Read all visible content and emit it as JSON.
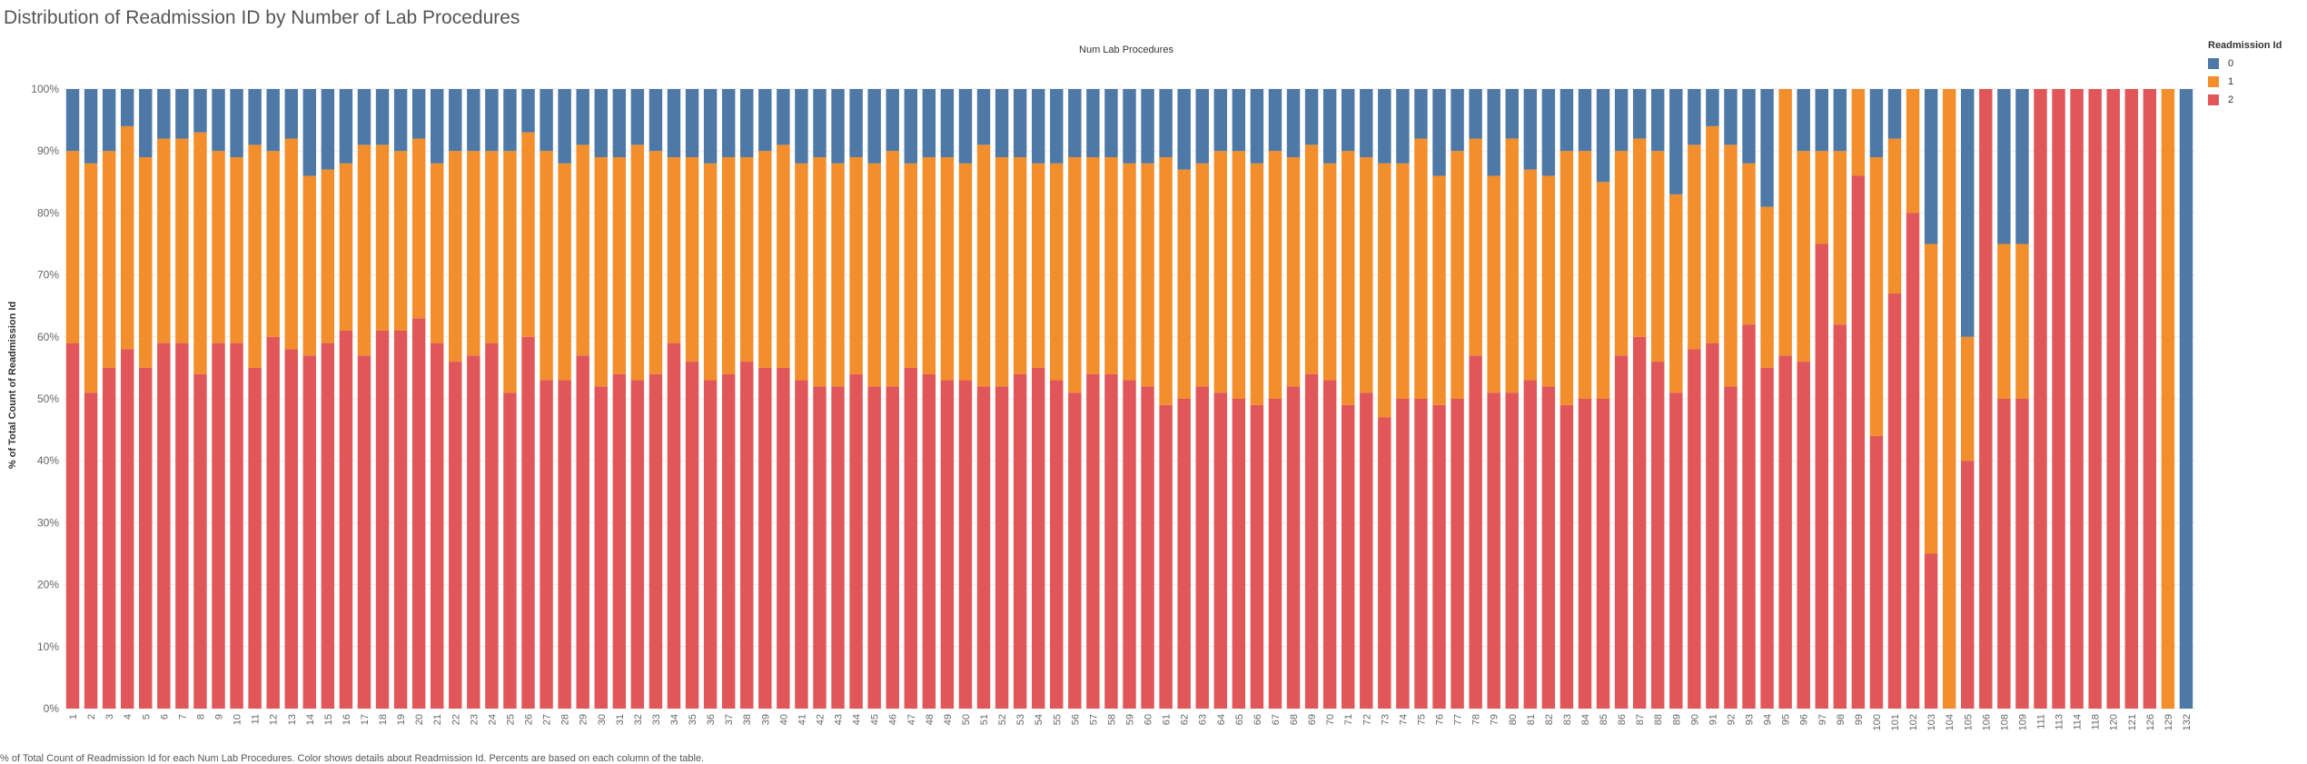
{
  "title": "Distribution of Readmission ID by Number of Lab Procedures",
  "footer": "% of Total Count of Readmission Id for each Num Lab Procedures.  Color shows details about Readmission Id. Percents are based on each column of the table.",
  "legend": {
    "title": "Readmission Id",
    "items": [
      {
        "label": "0",
        "color": "#4e79a7"
      },
      {
        "label": "1",
        "color": "#f28e2b"
      },
      {
        "label": "2",
        "color": "#e15759"
      }
    ]
  },
  "chart_data": {
    "type": "bar",
    "stacked": true,
    "top_label": "Num Lab Procedures",
    "ylabel": "% of Total Count of Readmission Id",
    "ylim": [
      0,
      100
    ],
    "yticks": [
      "0%",
      "10%",
      "20%",
      "30%",
      "40%",
      "50%",
      "60%",
      "70%",
      "80%",
      "90%",
      "100%"
    ],
    "grid": true,
    "legend_position": "right",
    "categories": [
      "1",
      "2",
      "3",
      "4",
      "5",
      "6",
      "7",
      "8",
      "9",
      "10",
      "11",
      "12",
      "13",
      "14",
      "15",
      "16",
      "17",
      "18",
      "19",
      "20",
      "21",
      "22",
      "23",
      "24",
      "25",
      "26",
      "27",
      "28",
      "29",
      "30",
      "31",
      "32",
      "33",
      "34",
      "35",
      "36",
      "37",
      "38",
      "39",
      "40",
      "41",
      "42",
      "43",
      "44",
      "45",
      "46",
      "47",
      "48",
      "49",
      "50",
      "51",
      "52",
      "53",
      "54",
      "55",
      "56",
      "57",
      "58",
      "59",
      "60",
      "61",
      "62",
      "63",
      "64",
      "65",
      "66",
      "67",
      "68",
      "69",
      "70",
      "71",
      "72",
      "73",
      "74",
      "75",
      "76",
      "77",
      "78",
      "79",
      "80",
      "81",
      "82",
      "83",
      "84",
      "85",
      "86",
      "87",
      "88",
      "89",
      "90",
      "91",
      "92",
      "93",
      "94",
      "95",
      "96",
      "97",
      "98",
      "99",
      "100",
      "101",
      "102",
      "103",
      "104",
      "105",
      "106",
      "108",
      "109",
      "111",
      "113",
      "114",
      "118",
      "120",
      "121",
      "126",
      "129",
      "132"
    ],
    "series": [
      {
        "name": "2",
        "color": "#e15759",
        "values": [
          59,
          51,
          55,
          58,
          55,
          59,
          59,
          54,
          59,
          59,
          55,
          60,
          58,
          57,
          59,
          61,
          57,
          61,
          61,
          63,
          59,
          56,
          57,
          59,
          51,
          60,
          53,
          53,
          57,
          52,
          54,
          53,
          54,
          59,
          56,
          53,
          54,
          56,
          55,
          55,
          53,
          52,
          52,
          54,
          52,
          52,
          55,
          54,
          53,
          53,
          52,
          52,
          54,
          55,
          53,
          51,
          54,
          54,
          53,
          52,
          49,
          50,
          52,
          51,
          50,
          49,
          50,
          52,
          54,
          53,
          49,
          51,
          47,
          50,
          50,
          49,
          50,
          57,
          51,
          51,
          53,
          52,
          49,
          50,
          50,
          57,
          60,
          56,
          51,
          58,
          59,
          52,
          62,
          55,
          57,
          56,
          75,
          62,
          86,
          44,
          67,
          80,
          25,
          0,
          40,
          100,
          50,
          50,
          100,
          100,
          100,
          100,
          100,
          100,
          100,
          0,
          0
        ]
      },
      {
        "name": "1",
        "color": "#f28e2b",
        "values": [
          31,
          37,
          35,
          36,
          34,
          33,
          33,
          39,
          31,
          30,
          36,
          30,
          34,
          29,
          28,
          27,
          34,
          30,
          29,
          29,
          29,
          34,
          33,
          31,
          39,
          33,
          37,
          35,
          34,
          37,
          35,
          38,
          36,
          30,
          33,
          35,
          35,
          33,
          35,
          36,
          35,
          37,
          36,
          35,
          36,
          38,
          33,
          35,
          36,
          35,
          39,
          37,
          35,
          33,
          35,
          38,
          35,
          35,
          35,
          36,
          40,
          37,
          36,
          39,
          40,
          39,
          40,
          37,
          37,
          35,
          41,
          38,
          41,
          38,
          42,
          37,
          40,
          35,
          35,
          41,
          34,
          34,
          41,
          40,
          35,
          33,
          32,
          34,
          32,
          33,
          35,
          39,
          26,
          26,
          43,
          34,
          15,
          28,
          14,
          45,
          25,
          20,
          50,
          100,
          20,
          0,
          25,
          25,
          0,
          0,
          0,
          0,
          0,
          0,
          0,
          100,
          0
        ]
      },
      {
        "name": "0",
        "color": "#4e79a7",
        "values": [
          10,
          12,
          10,
          6,
          11,
          8,
          8,
          7,
          10,
          11,
          9,
          10,
          8,
          14,
          13,
          12,
          9,
          9,
          10,
          8,
          12,
          10,
          10,
          10,
          10,
          7,
          10,
          12,
          9,
          11,
          11,
          9,
          10,
          11,
          11,
          12,
          11,
          11,
          10,
          9,
          12,
          11,
          12,
          11,
          12,
          10,
          12,
          11,
          11,
          12,
          9,
          11,
          11,
          12,
          12,
          11,
          11,
          11,
          12,
          12,
          11,
          13,
          12,
          10,
          10,
          12,
          10,
          11,
          9,
          12,
          10,
          11,
          12,
          12,
          8,
          14,
          10,
          8,
          14,
          8,
          13,
          14,
          10,
          10,
          15,
          10,
          8,
          10,
          17,
          9,
          6,
          9,
          12,
          19,
          0,
          10,
          10,
          10,
          0,
          11,
          8,
          0,
          25,
          0,
          40,
          0,
          25,
          25,
          0,
          0,
          0,
          0,
          0,
          0,
          0,
          0,
          100
        ]
      }
    ]
  }
}
